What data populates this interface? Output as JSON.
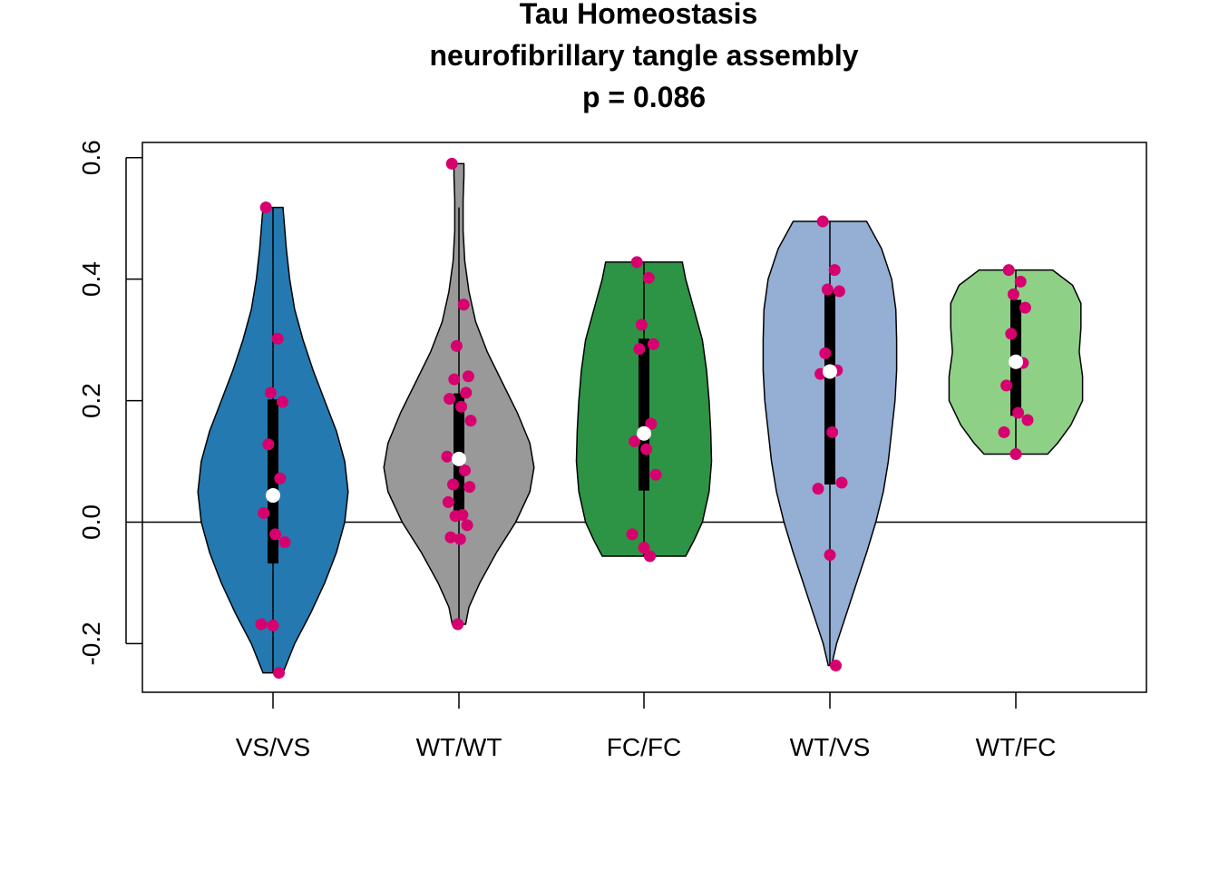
{
  "chart_data": {
    "type": "violin",
    "title": "Tau Homeostasis",
    "subtitle": "neurofibrillary tangle assembly",
    "annotation": "p = 0.086",
    "xlabel": "",
    "ylabel": "",
    "ylim": [
      -0.28,
      0.625
    ],
    "yticks": [
      -0.2,
      0.0,
      0.2,
      0.4,
      0.6
    ],
    "ytick_labels": [
      "-0.2",
      "0.0",
      "0.2",
      "0.4",
      "0.6"
    ],
    "reference_line_y": 0.0,
    "grid": false,
    "legend": "none",
    "point_color": "#d6006f",
    "categories": [
      "VS/VS",
      "WT/WT",
      "FC/FC",
      "WT/VS",
      "WT/FC"
    ],
    "groups": [
      {
        "label": "VS/VS",
        "color": "#2479b0",
        "min": -0.248,
        "max": 0.518,
        "q1": -0.068,
        "q3": 0.202,
        "median": 0.044,
        "whisker": [
          -0.248,
          0.518
        ],
        "density": [
          [
            -0.248,
            0.12
          ],
          [
            -0.2,
            0.26
          ],
          [
            -0.15,
            0.45
          ],
          [
            -0.1,
            0.62
          ],
          [
            -0.05,
            0.76
          ],
          [
            0.0,
            0.86
          ],
          [
            0.05,
            0.9
          ],
          [
            0.1,
            0.86
          ],
          [
            0.15,
            0.76
          ],
          [
            0.2,
            0.62
          ],
          [
            0.25,
            0.48
          ],
          [
            0.3,
            0.36
          ],
          [
            0.35,
            0.26
          ],
          [
            0.4,
            0.2
          ],
          [
            0.45,
            0.16
          ],
          [
            0.5,
            0.13
          ],
          [
            0.518,
            0.12
          ]
        ],
        "points": [
          0.518,
          0.302,
          0.213,
          0.198,
          0.128,
          0.072,
          0.015,
          -0.02,
          -0.033,
          -0.168,
          -0.17,
          -0.248
        ]
      },
      {
        "label": "WT/WT",
        "color": "#999999",
        "min": -0.168,
        "max": 0.59,
        "q1": 0.01,
        "q3": 0.212,
        "median": 0.104,
        "whisker": [
          -0.168,
          0.518
        ],
        "density": [
          [
            -0.168,
            0.08
          ],
          [
            -0.14,
            0.12
          ],
          [
            -0.1,
            0.25
          ],
          [
            -0.05,
            0.45
          ],
          [
            0.0,
            0.68
          ],
          [
            0.05,
            0.85
          ],
          [
            0.09,
            0.9
          ],
          [
            0.13,
            0.85
          ],
          [
            0.18,
            0.7
          ],
          [
            0.23,
            0.52
          ],
          [
            0.28,
            0.34
          ],
          [
            0.33,
            0.2
          ],
          [
            0.38,
            0.12
          ],
          [
            0.43,
            0.07
          ],
          [
            0.48,
            0.05
          ],
          [
            0.53,
            0.05
          ],
          [
            0.57,
            0.06
          ],
          [
            0.59,
            0.06
          ]
        ],
        "points": [
          0.59,
          0.358,
          0.29,
          0.24,
          0.235,
          0.213,
          0.203,
          0.19,
          0.167,
          0.108,
          0.102,
          0.085,
          0.062,
          0.058,
          0.033,
          0.012,
          0.01,
          -0.005,
          -0.025,
          -0.028,
          -0.168
        ]
      },
      {
        "label": "FC/FC",
        "color": "#2c9444",
        "min": -0.056,
        "max": 0.428,
        "q1": 0.052,
        "q3": 0.302,
        "median": 0.146,
        "whisker": [
          -0.056,
          0.428
        ],
        "density": [
          [
            -0.056,
            0.5
          ],
          [
            -0.03,
            0.6
          ],
          [
            0.0,
            0.7
          ],
          [
            0.05,
            0.78
          ],
          [
            0.1,
            0.81
          ],
          [
            0.15,
            0.8
          ],
          [
            0.2,
            0.78
          ],
          [
            0.25,
            0.75
          ],
          [
            0.3,
            0.7
          ],
          [
            0.35,
            0.6
          ],
          [
            0.4,
            0.5
          ],
          [
            0.428,
            0.46
          ]
        ],
        "points": [
          0.428,
          0.402,
          0.325,
          0.293,
          0.285,
          0.162,
          0.133,
          0.12,
          0.078,
          -0.02,
          -0.042,
          -0.056
        ]
      },
      {
        "label": "WT/VS",
        "color": "#94aed4",
        "min": -0.236,
        "max": 0.495,
        "q1": 0.062,
        "q3": 0.382,
        "median": 0.248,
        "whisker": [
          -0.236,
          0.495
        ],
        "density": [
          [
            -0.236,
            0.02
          ],
          [
            -0.2,
            0.08
          ],
          [
            -0.15,
            0.2
          ],
          [
            -0.1,
            0.32
          ],
          [
            -0.05,
            0.44
          ],
          [
            0.0,
            0.55
          ],
          [
            0.05,
            0.64
          ],
          [
            0.1,
            0.7
          ],
          [
            0.15,
            0.74
          ],
          [
            0.2,
            0.78
          ],
          [
            0.25,
            0.8
          ],
          [
            0.3,
            0.8
          ],
          [
            0.35,
            0.79
          ],
          [
            0.4,
            0.74
          ],
          [
            0.45,
            0.62
          ],
          [
            0.495,
            0.44
          ]
        ],
        "points": [
          0.495,
          0.415,
          0.383,
          0.38,
          0.278,
          0.25,
          0.244,
          0.148,
          0.065,
          0.055,
          -0.054,
          -0.236
        ]
      },
      {
        "label": "WT/FC",
        "color": "#8fd087",
        "min": 0.112,
        "max": 0.415,
        "q1": 0.175,
        "q3": 0.366,
        "median": 0.264,
        "whisker": [
          0.112,
          0.415
        ],
        "density": [
          [
            0.112,
            0.38
          ],
          [
            0.13,
            0.5
          ],
          [
            0.16,
            0.66
          ],
          [
            0.2,
            0.8
          ],
          [
            0.24,
            0.8
          ],
          [
            0.28,
            0.76
          ],
          [
            0.32,
            0.78
          ],
          [
            0.36,
            0.78
          ],
          [
            0.39,
            0.68
          ],
          [
            0.415,
            0.44
          ]
        ],
        "points": [
          0.415,
          0.396,
          0.375,
          0.353,
          0.31,
          0.262,
          0.225,
          0.18,
          0.168,
          0.148,
          0.112
        ]
      }
    ]
  }
}
